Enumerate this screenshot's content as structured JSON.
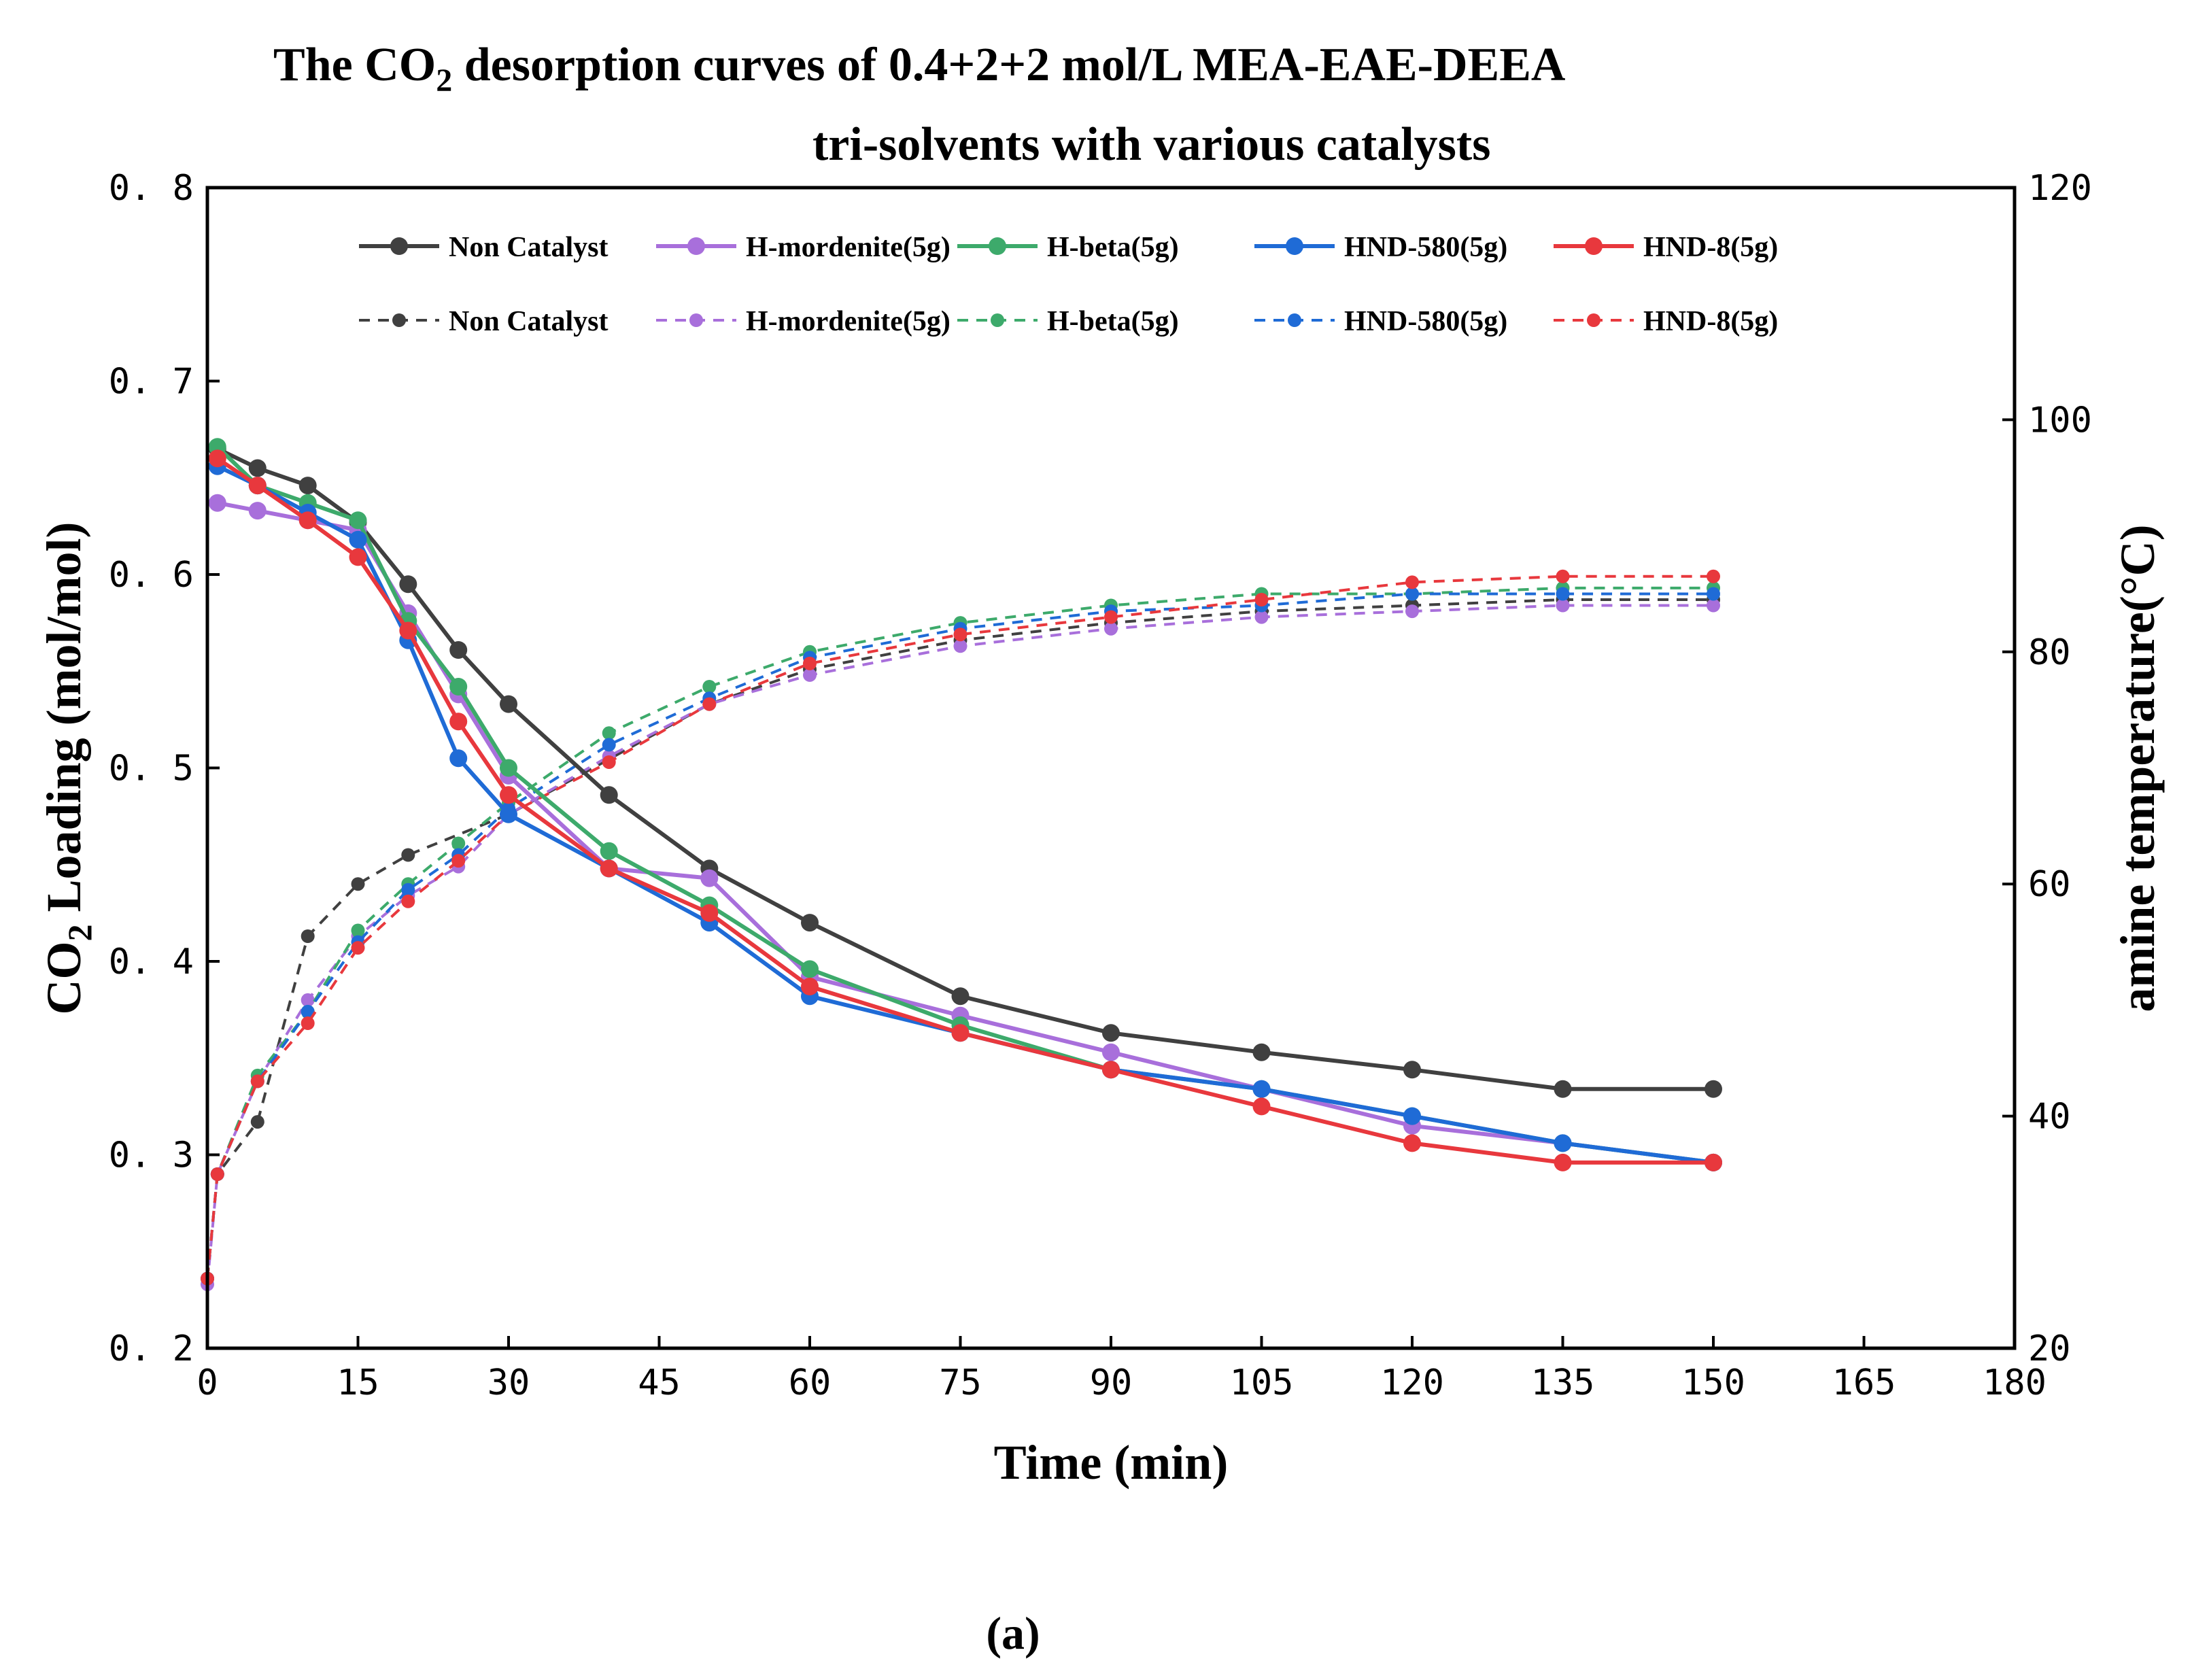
{
  "chart_data": {
    "type": "line",
    "title_line1_prefix": "The CO",
    "title_line1_sub": "2",
    "title_line1_suffix": " desorption curves of 0.4+2+2 mol/L MEA-EAE-DEEA",
    "title_line2": "tri-solvents with various catalysts",
    "xlabel": "Time (min)",
    "ylabel_prefix": "CO",
    "ylabel_sub": "2",
    "ylabel_suffix": " Loading (mol/mol)",
    "y2label": "amine temperature(°C)",
    "caption": "(a)",
    "xlim": [
      0,
      180
    ],
    "ylim": [
      0.2,
      0.8
    ],
    "y2lim": [
      20,
      120
    ],
    "xticks": [
      0,
      15,
      30,
      45,
      60,
      75,
      90,
      105,
      120,
      135,
      150,
      165,
      180
    ],
    "yticks": [
      0.2,
      0.3,
      0.4,
      0.5,
      0.6,
      0.7,
      0.8
    ],
    "yticklabels": [
      "0. 2",
      "0. 3",
      "0. 4",
      "0. 5",
      "0. 6",
      "0. 7",
      "0. 8"
    ],
    "y2ticks": [
      20,
      40,
      60,
      80,
      100,
      120
    ],
    "loading_series": [
      {
        "name": "Non Catalyst",
        "color": "#404040",
        "x": [
          1,
          5,
          10,
          15,
          20,
          25,
          30,
          40,
          50,
          60,
          75,
          90,
          105,
          120,
          135,
          150
        ],
        "values": [
          0.665,
          0.655,
          0.646,
          0.627,
          0.595,
          0.561,
          0.533,
          0.486,
          0.448,
          0.42,
          0.382,
          0.363,
          0.353,
          0.344,
          0.334,
          0.334
        ]
      },
      {
        "name": "H-mordenite(5g)",
        "color": "#A86FDB",
        "x": [
          1,
          5,
          10,
          15,
          20,
          25,
          30,
          40,
          50,
          60,
          75,
          90,
          105,
          120,
          135,
          150
        ],
        "values": [
          0.637,
          0.633,
          0.628,
          0.623,
          0.58,
          0.538,
          0.496,
          0.448,
          0.443,
          0.392,
          0.372,
          0.353,
          0.334,
          0.315,
          0.306,
          0.296
        ]
      },
      {
        "name": "H-beta(5g)",
        "color": "#3DAA6B",
        "x": [
          1,
          5,
          10,
          15,
          20,
          25,
          30,
          40,
          50,
          60,
          75,
          90,
          105,
          120,
          135,
          150
        ],
        "values": [
          0.666,
          0.646,
          0.637,
          0.628,
          0.576,
          0.542,
          0.5,
          0.457,
          0.429,
          0.396,
          0.367,
          0.344,
          0.334,
          0.32,
          0.306,
          0.296
        ]
      },
      {
        "name": "HND-580(5g)",
        "color": "#1F6BD6",
        "x": [
          1,
          5,
          10,
          15,
          20,
          25,
          30,
          40,
          50,
          60,
          75,
          90,
          105,
          120,
          135,
          150
        ],
        "values": [
          0.656,
          0.646,
          0.632,
          0.618,
          0.566,
          0.505,
          0.476,
          0.448,
          0.42,
          0.382,
          0.363,
          0.344,
          0.334,
          0.32,
          0.306,
          0.296
        ]
      },
      {
        "name": "HND-8(5g)",
        "color": "#E8383D",
        "x": [
          1,
          5,
          10,
          15,
          20,
          25,
          30,
          40,
          50,
          60,
          75,
          90,
          105,
          120,
          135,
          150
        ],
        "values": [
          0.66,
          0.646,
          0.628,
          0.609,
          0.571,
          0.524,
          0.486,
          0.448,
          0.425,
          0.387,
          0.363,
          0.344,
          0.325,
          0.306,
          0.296,
          0.296
        ]
      }
    ],
    "temperature_series": [
      {
        "name": "Non Catalyst",
        "color": "#404040",
        "x": [
          0,
          1,
          5,
          10,
          15,
          20,
          30,
          50,
          60,
          75,
          90,
          105,
          120,
          135,
          150
        ],
        "values": [
          26,
          35,
          39.5,
          55.5,
          60,
          62.5,
          66,
          75.5,
          78.5,
          81,
          82.5,
          83.5,
          84,
          84.5,
          84.5
        ]
      },
      {
        "name": "H-mordenite(5g)",
        "color": "#A86FDB",
        "x": [
          0,
          1,
          5,
          10,
          15,
          20,
          25,
          30,
          40,
          50,
          60,
          75,
          90,
          105,
          120,
          135,
          150
        ],
        "values": [
          25.5,
          35,
          43,
          50,
          55.5,
          59,
          61.5,
          66,
          71,
          75.5,
          78,
          80.5,
          82,
          83,
          83.5,
          84,
          84
        ]
      },
      {
        "name": "H-beta(5g)",
        "color": "#3DAA6B",
        "x": [
          0,
          1,
          5,
          10,
          15,
          20,
          25,
          30,
          40,
          50,
          60,
          75,
          90,
          105,
          120,
          135,
          150
        ],
        "values": [
          26,
          35,
          43.5,
          49,
          56,
          60,
          63.5,
          67,
          73,
          77,
          80,
          82.5,
          84,
          85,
          85,
          85.5,
          85.5
        ]
      },
      {
        "name": "HND-580(5g)",
        "color": "#1F6BD6",
        "x": [
          0,
          1,
          5,
          10,
          15,
          20,
          25,
          30,
          40,
          50,
          60,
          75,
          90,
          105,
          120,
          135,
          150
        ],
        "values": [
          26,
          35,
          43,
          49,
          55,
          59.5,
          62.5,
          66.5,
          72,
          76,
          79.5,
          82,
          83.5,
          84,
          85,
          85,
          85
        ]
      },
      {
        "name": "HND-8(5g)",
        "color": "#E8383D",
        "x": [
          0,
          1,
          5,
          10,
          15,
          20,
          25,
          30,
          40,
          50,
          60,
          75,
          90,
          105,
          120,
          135,
          150
        ],
        "values": [
          26,
          35,
          43,
          48,
          54.5,
          58.5,
          62,
          66,
          70.5,
          75.5,
          79,
          81.5,
          83,
          84.5,
          86,
          86.5,
          86.5
        ]
      }
    ],
    "legend": {
      "placement": "top"
    },
    "grid": false
  }
}
